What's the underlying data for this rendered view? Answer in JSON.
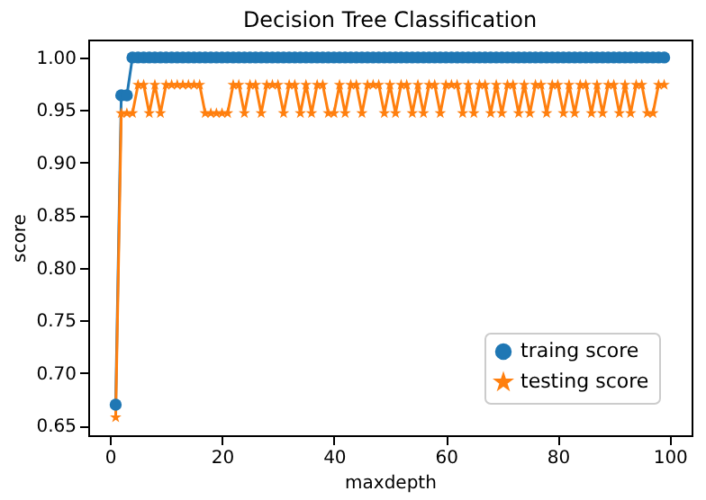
{
  "chart_data": {
    "type": "line",
    "title": "Decision Tree Classification",
    "xlabel": "maxdepth",
    "ylabel": "score",
    "x": [
      1,
      2,
      3,
      4,
      5,
      6,
      7,
      8,
      9,
      10,
      11,
      12,
      13,
      14,
      15,
      16,
      17,
      18,
      19,
      20,
      21,
      22,
      23,
      24,
      25,
      26,
      27,
      28,
      29,
      30,
      31,
      32,
      33,
      34,
      35,
      36,
      37,
      38,
      39,
      40,
      41,
      42,
      43,
      44,
      45,
      46,
      47,
      48,
      49,
      50,
      51,
      52,
      53,
      54,
      55,
      56,
      57,
      58,
      59,
      60,
      61,
      62,
      63,
      64,
      65,
      66,
      67,
      68,
      69,
      70,
      71,
      72,
      73,
      74,
      75,
      76,
      77,
      78,
      79,
      80,
      81,
      82,
      83,
      84,
      85,
      86,
      87,
      88,
      89,
      90,
      91,
      92,
      93,
      94,
      95,
      96,
      97,
      98,
      99
    ],
    "series": [
      {
        "name": "traing score",
        "color": "#1f77b4",
        "marker": "circle",
        "values": [
          0.67,
          0.964,
          0.964,
          1,
          1,
          1,
          1,
          1,
          1,
          1,
          1,
          1,
          1,
          1,
          1,
          1,
          1,
          1,
          1,
          1,
          1,
          1,
          1,
          1,
          1,
          1,
          1,
          1,
          1,
          1,
          1,
          1,
          1,
          1,
          1,
          1,
          1,
          1,
          1,
          1,
          1,
          1,
          1,
          1,
          1,
          1,
          1,
          1,
          1,
          1,
          1,
          1,
          1,
          1,
          1,
          1,
          1,
          1,
          1,
          1,
          1,
          1,
          1,
          1,
          1,
          1,
          1,
          1,
          1,
          1,
          1,
          1,
          1,
          1,
          1,
          1,
          1,
          1,
          1,
          1,
          1,
          1,
          1,
          1,
          1,
          1,
          1,
          1,
          1,
          1,
          1,
          1,
          1,
          1,
          1,
          1,
          1,
          1,
          1
        ]
      },
      {
        "name": "testing score",
        "color": "#ff7f0e",
        "marker": "star",
        "values": [
          0.658,
          0.947,
          0.947,
          0.947,
          0.974,
          0.974,
          0.947,
          0.974,
          0.947,
          0.974,
          0.974,
          0.974,
          0.974,
          0.974,
          0.974,
          0.974,
          0.947,
          0.947,
          0.947,
          0.947,
          0.947,
          0.974,
          0.974,
          0.947,
          0.974,
          0.974,
          0.947,
          0.974,
          0.974,
          0.974,
          0.947,
          0.974,
          0.974,
          0.947,
          0.974,
          0.947,
          0.974,
          0.974,
          0.947,
          0.947,
          0.974,
          0.947,
          0.974,
          0.974,
          0.947,
          0.974,
          0.974,
          0.974,
          0.947,
          0.974,
          0.947,
          0.974,
          0.974,
          0.947,
          0.974,
          0.947,
          0.974,
          0.974,
          0.947,
          0.974,
          0.974,
          0.974,
          0.947,
          0.974,
          0.947,
          0.974,
          0.974,
          0.947,
          0.974,
          0.947,
          0.974,
          0.974,
          0.947,
          0.974,
          0.947,
          0.974,
          0.974,
          0.947,
          0.974,
          0.974,
          0.947,
          0.974,
          0.947,
          0.974,
          0.974,
          0.947,
          0.974,
          0.947,
          0.974,
          0.974,
          0.947,
          0.974,
          0.947,
          0.974,
          0.974,
          0.947,
          0.947,
          0.974,
          0.974
        ]
      }
    ],
    "xlim": [
      -3.9,
      103.9
    ],
    "xticks": [
      0,
      20,
      40,
      60,
      80,
      100
    ],
    "ylim": [
      0.641,
      1.017
    ],
    "yticks": [
      0.65,
      {
        "value": 0.7,
        "label": "0.70"
      },
      0.75,
      {
        "value": 0.8,
        "label": "0.80"
      },
      0.85,
      {
        "value": 0.9,
        "label": "0.90"
      },
      0.95,
      {
        "value": 1,
        "label": "1.00"
      }
    ],
    "grid": false,
    "legend": "bottom right"
  }
}
